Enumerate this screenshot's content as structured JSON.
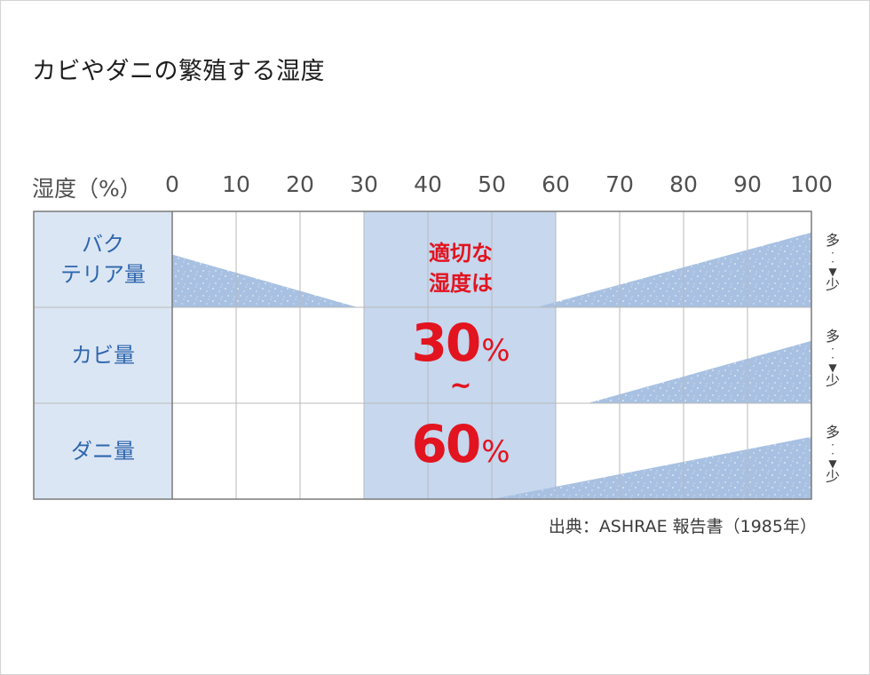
{
  "title": "カビやダニの繁殖する湿度",
  "axis_label": "湿度（%）",
  "optimal": {
    "line1": "適切な",
    "line2": "湿度は",
    "low": "30",
    "high": "60",
    "unit": "%",
    "tilde": "~"
  },
  "scale_labels": {
    "many": "多",
    "few": "少"
  },
  "source": "出典：ASHRAE 報告書（1985年）",
  "colors": {
    "label_bg": "#dbe6f4",
    "optimal_bg": "#c6d7ee",
    "wedge": "#a8c1e2",
    "grid": "#b9b9b9",
    "border": "#7a7a7a",
    "label_text": "#2f66ad",
    "highlight": "#e2141f"
  },
  "chart_data": {
    "type": "area",
    "title": "カビやダニの繁殖する湿度",
    "xlabel": "湿度（%）",
    "xlim": [
      0,
      100
    ],
    "ticks": [
      "0",
      "10",
      "20",
      "30",
      "40",
      "50",
      "60",
      "70",
      "80",
      "90",
      "100"
    ],
    "optimal_range": [
      30,
      60
    ],
    "series": [
      {
        "name": "バクテリア量",
        "label_lines": [
          "バク",
          "テリア量"
        ],
        "segments": [
          {
            "from": 0,
            "to": 29,
            "start_level": 0.55,
            "end_level": 0.0
          },
          {
            "from": 57,
            "to": 100,
            "start_level": 0.0,
            "end_level": 0.78
          }
        ]
      },
      {
        "name": "カビ量",
        "label_lines": [
          "カビ量"
        ],
        "segments": [
          {
            "from": 65,
            "to": 100,
            "start_level": 0.0,
            "end_level": 0.65
          }
        ]
      },
      {
        "name": "ダニ量",
        "label_lines": [
          "ダニ量"
        ],
        "segments": [
          {
            "from": 50,
            "to": 100,
            "start_level": 0.0,
            "end_level": 0.65
          }
        ]
      }
    ]
  }
}
